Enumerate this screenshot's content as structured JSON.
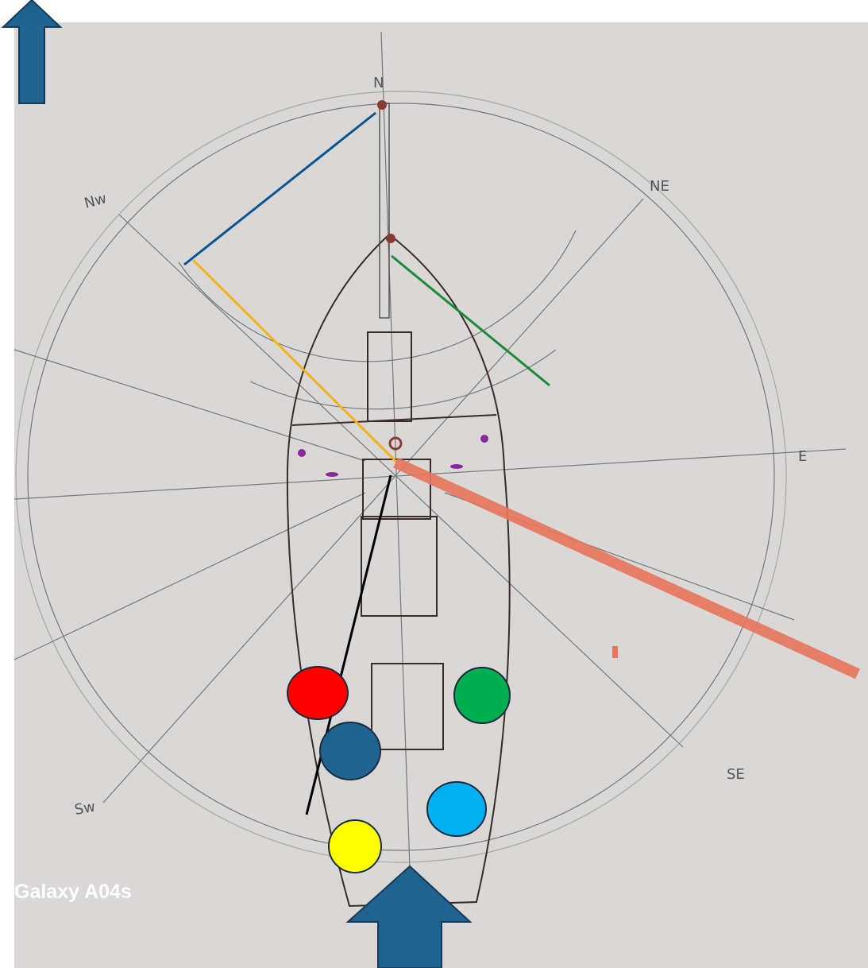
{
  "compass": {
    "labels": {
      "n": "N",
      "ne": "NE",
      "nw": "Nw",
      "e": "E",
      "se": "SE",
      "sw": "Sw"
    }
  },
  "watermark": "Galaxy A04s"
}
